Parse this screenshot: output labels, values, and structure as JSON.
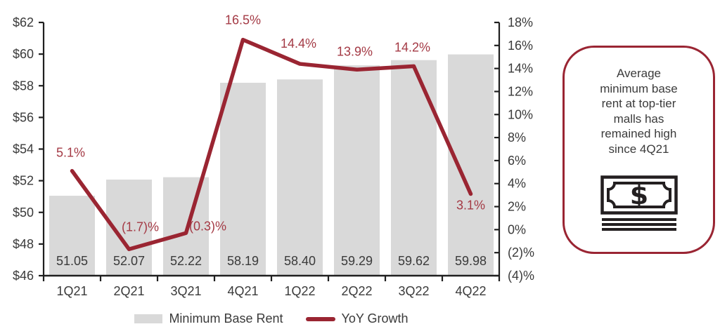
{
  "chart_data": {
    "type": "combo-bar-line",
    "title": "",
    "categories": [
      "1Q21",
      "2Q21",
      "3Q21",
      "4Q21",
      "1Q22",
      "2Q22",
      "3Q22",
      "4Q22"
    ],
    "series": [
      {
        "name": "Minimum Base Rent",
        "type": "bar",
        "axis": "left",
        "values": [
          51.05,
          52.07,
          52.22,
          58.19,
          58.4,
          59.29,
          59.62,
          59.98
        ],
        "labels": [
          "51.05",
          "52.07",
          "52.22",
          "58.19",
          "58.40",
          "59.29",
          "59.62",
          "59.98"
        ],
        "color": "#d9d9d9",
        "label_color": "#3a3a3a"
      },
      {
        "name": "YoY Growth",
        "type": "line",
        "axis": "right",
        "values": [
          5.1,
          -1.7,
          -0.3,
          16.5,
          14.4,
          13.9,
          14.2,
          3.1
        ],
        "labels": [
          "5.1%",
          "(1.7)%",
          "(0.3)%",
          "16.5%",
          "14.4%",
          "13.9%",
          "14.2%",
          "3.1%"
        ],
        "color": "#9a2532",
        "label_color": "#a43a45"
      }
    ],
    "left_axis": {
      "min": 46,
      "max": 62,
      "step": 2,
      "tick_labels": [
        "$62",
        "$60",
        "$58",
        "$56",
        "$54",
        "$52",
        "$50",
        "$48",
        "$46"
      ]
    },
    "right_axis": {
      "min": -4,
      "max": 18,
      "step": 2,
      "tick_labels": [
        "18%",
        "16%",
        "14%",
        "12%",
        "10%",
        "8%",
        "6%",
        "4%",
        "2%",
        "0%",
        "(2)%",
        "(4)%"
      ]
    },
    "legend": [
      {
        "label": "Minimum Base Rent",
        "swatch": "bar",
        "color": "#d9d9d9"
      },
      {
        "label": "YoY Growth",
        "swatch": "line",
        "color": "#9a2532"
      }
    ],
    "grid": false,
    "legend_position": "bottom"
  },
  "callout": {
    "lines": [
      "Average",
      "minimum base",
      "rent at top-tier",
      "malls has",
      "remained high",
      "since 4Q21"
    ],
    "text": "Average minimum base rent at top-tier malls has remained high since 4Q21",
    "border_color": "#9a2533",
    "icon": "money-bill-stack-icon",
    "icon_color": "#231f20"
  }
}
